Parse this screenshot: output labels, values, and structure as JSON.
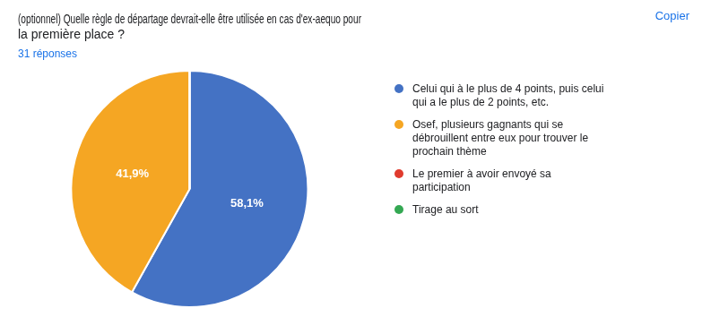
{
  "chart_data": {
    "type": "pie",
    "title": [
      "(optionnel) Quelle règle de départage devrait-elle être utilisée en cas d'ex-aequo pour",
      "la première place ?"
    ],
    "subtitle": "31 réponses",
    "annotation": "Copier",
    "categories": [
      "Celui qui à le plus de 4 points, puis celui\nqui a le plus de 2 points, etc.",
      "Osef, plusieurs gagnants qui se\ndébrouillent entre eux pour trouver le\nprochain thème",
      "Le premier à avoir envoyé sa\nparticipation",
      "Tirage au sort"
    ],
    "values": [
      58.1,
      41.9,
      0.001,
      0.001
    ],
    "value_labels": [
      "58,1%",
      "41,9%",
      null,
      null
    ],
    "colors": [
      "#4472c4",
      "#f5a623",
      "#e03b2e",
      "#34a853"
    ],
    "legend": "right",
    "data_labels": true
  }
}
